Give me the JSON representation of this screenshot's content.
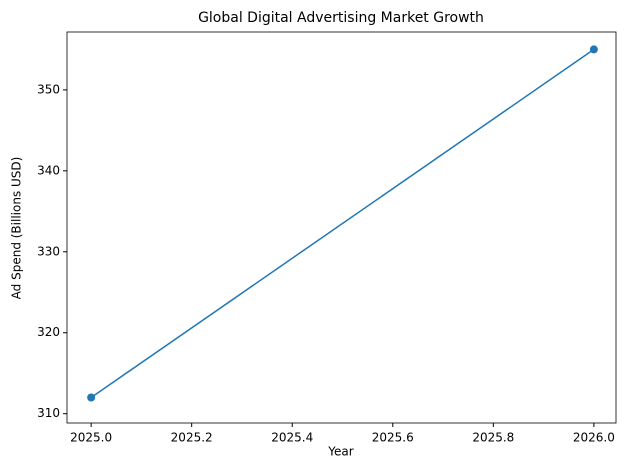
{
  "chart_data": {
    "type": "line",
    "title": "Global Digital Advertising Market Growth",
    "x_label": "Year",
    "y_label": "Ad Spend (Billions USD)",
    "x": [
      2025,
      2026
    ],
    "values": [
      312,
      355
    ],
    "color": "#1f77b4",
    "xlim": [
      2024.952,
      2026.044
    ],
    "xticks": [
      {
        "value": 2025,
        "label": "2025.0"
      },
      {
        "value": 2025.2,
        "label": "2025.2"
      },
      {
        "value": 2025.4,
        "label": "2025.4"
      },
      {
        "value": 2025.6,
        "label": "2025.6"
      },
      {
        "value": 2025.8,
        "label": "2025.8"
      },
      {
        "value": 2026,
        "label": "2026.0"
      }
    ],
    "ylim": [
      308.85,
      357.15
    ],
    "yticks": [
      310,
      320,
      330,
      340,
      350
    ],
    "grid": false,
    "markers": true
  }
}
